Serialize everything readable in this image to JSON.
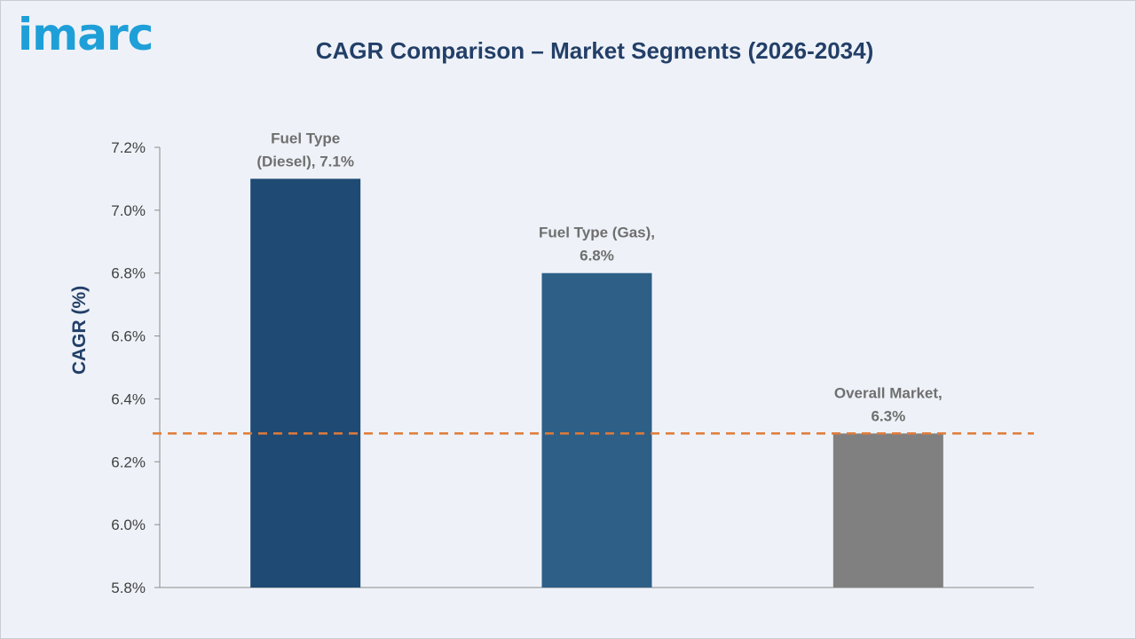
{
  "logo": {
    "text": "imarc",
    "color": "#1f9fd8"
  },
  "chart_data": {
    "type": "bar",
    "title": "CAGR Comparison – Market Segments (2026-2034)",
    "xlabel": "",
    "ylabel": "CAGR (%)",
    "ylim": [
      5.8,
      7.2
    ],
    "yticks": [
      "5.8%",
      "6.0%",
      "6.2%",
      "6.4%",
      "6.6%",
      "6.8%",
      "7.0%",
      "7.2%"
    ],
    "ytick_values": [
      5.8,
      6.0,
      6.2,
      6.4,
      6.6,
      6.8,
      7.0,
      7.2
    ],
    "categories": [
      "Fuel Type (Diesel)",
      "Fuel Type (Gas)",
      "Overall Market"
    ],
    "values": [
      7.1,
      6.8,
      6.29
    ],
    "colors": [
      "#1f4a73",
      "#2d5f87",
      "#808080"
    ],
    "data_labels": [
      [
        "Fuel Type",
        "(Diesel), 7.1%"
      ],
      [
        "Fuel Type (Gas),",
        "6.8%"
      ],
      [
        "Overall Market,",
        "6.3%"
      ]
    ],
    "reference_line": {
      "value": 6.29,
      "color": "#e07b39",
      "style": "dashed"
    },
    "grid": false,
    "legend": "none"
  }
}
